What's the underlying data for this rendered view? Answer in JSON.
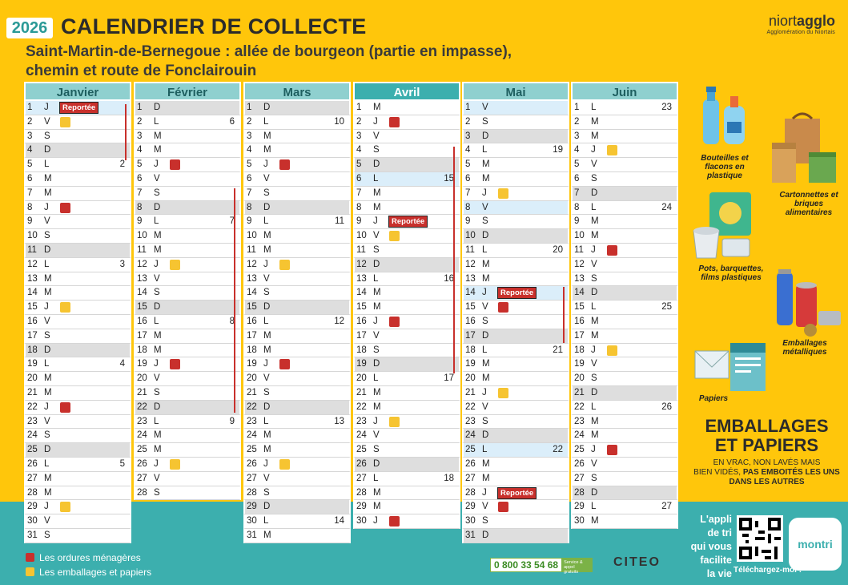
{
  "header": {
    "year": "2026",
    "title": "CALENDRIER DE COLLECTE",
    "subtitle_line1": "Saint-Martin-de-Bernegoue : allée de bourgeon (partie en impasse),",
    "subtitle_line2": "chemin et route de Fonclairouin"
  },
  "logo": {
    "brand_a": "niort",
    "brand_b": "agglo",
    "tagline": "Agglomération du Niortais"
  },
  "colors": {
    "red": "#c8302c",
    "yellow": "#f6c431",
    "teal": "#3cafae",
    "background": "#ffc60b"
  },
  "reported_label": "Reportée",
  "months": [
    {
      "name": "Janvier",
      "days": [
        {
          "n": "1",
          "l": "J",
          "hol": true,
          "rep": true
        },
        {
          "n": "2",
          "l": "V",
          "dot": "yel"
        },
        {
          "n": "3",
          "l": "S"
        },
        {
          "n": "4",
          "l": "D",
          "we": true
        },
        {
          "n": "5",
          "l": "L",
          "wk": "2"
        },
        {
          "n": "6",
          "l": "M"
        },
        {
          "n": "7",
          "l": "M"
        },
        {
          "n": "8",
          "l": "J",
          "dot": "red"
        },
        {
          "n": "9",
          "l": "V"
        },
        {
          "n": "10",
          "l": "S"
        },
        {
          "n": "11",
          "l": "D",
          "we": true
        },
        {
          "n": "12",
          "l": "L",
          "wk": "3"
        },
        {
          "n": "13",
          "l": "M"
        },
        {
          "n": "14",
          "l": "M"
        },
        {
          "n": "15",
          "l": "J",
          "dot": "yel"
        },
        {
          "n": "16",
          "l": "V"
        },
        {
          "n": "17",
          "l": "S"
        },
        {
          "n": "18",
          "l": "D",
          "we": true
        },
        {
          "n": "19",
          "l": "L",
          "wk": "4"
        },
        {
          "n": "20",
          "l": "M"
        },
        {
          "n": "21",
          "l": "M"
        },
        {
          "n": "22",
          "l": "J",
          "dot": "red"
        },
        {
          "n": "23",
          "l": "V"
        },
        {
          "n": "24",
          "l": "S"
        },
        {
          "n": "25",
          "l": "D",
          "we": true
        },
        {
          "n": "26",
          "l": "L",
          "wk": "5"
        },
        {
          "n": "27",
          "l": "M"
        },
        {
          "n": "28",
          "l": "M"
        },
        {
          "n": "29",
          "l": "J",
          "dot": "yel"
        },
        {
          "n": "30",
          "l": "V"
        },
        {
          "n": "31",
          "l": "S"
        }
      ]
    },
    {
      "name": "Février",
      "days": [
        {
          "n": "1",
          "l": "D",
          "we": true
        },
        {
          "n": "2",
          "l": "L",
          "wk": "6"
        },
        {
          "n": "3",
          "l": "M"
        },
        {
          "n": "4",
          "l": "M"
        },
        {
          "n": "5",
          "l": "J",
          "dot": "red"
        },
        {
          "n": "6",
          "l": "V"
        },
        {
          "n": "7",
          "l": "S"
        },
        {
          "n": "8",
          "l": "D",
          "we": true
        },
        {
          "n": "9",
          "l": "L",
          "wk": "7"
        },
        {
          "n": "10",
          "l": "M"
        },
        {
          "n": "11",
          "l": "M"
        },
        {
          "n": "12",
          "l": "J",
          "dot": "yel"
        },
        {
          "n": "13",
          "l": "V"
        },
        {
          "n": "14",
          "l": "S"
        },
        {
          "n": "15",
          "l": "D",
          "we": true
        },
        {
          "n": "16",
          "l": "L",
          "wk": "8"
        },
        {
          "n": "17",
          "l": "M"
        },
        {
          "n": "18",
          "l": "M"
        },
        {
          "n": "19",
          "l": "J",
          "dot": "red"
        },
        {
          "n": "20",
          "l": "V"
        },
        {
          "n": "21",
          "l": "S"
        },
        {
          "n": "22",
          "l": "D",
          "we": true
        },
        {
          "n": "23",
          "l": "L",
          "wk": "9"
        },
        {
          "n": "24",
          "l": "M"
        },
        {
          "n": "25",
          "l": "M"
        },
        {
          "n": "26",
          "l": "J",
          "dot": "yel"
        },
        {
          "n": "27",
          "l": "V"
        },
        {
          "n": "28",
          "l": "S"
        }
      ]
    },
    {
      "name": "Mars",
      "days": [
        {
          "n": "1",
          "l": "D",
          "we": true
        },
        {
          "n": "2",
          "l": "L",
          "wk": "10"
        },
        {
          "n": "3",
          "l": "M"
        },
        {
          "n": "4",
          "l": "M"
        },
        {
          "n": "5",
          "l": "J",
          "dot": "red"
        },
        {
          "n": "6",
          "l": "V"
        },
        {
          "n": "7",
          "l": "S"
        },
        {
          "n": "8",
          "l": "D",
          "we": true
        },
        {
          "n": "9",
          "l": "L",
          "wk": "11"
        },
        {
          "n": "10",
          "l": "M"
        },
        {
          "n": "11",
          "l": "M"
        },
        {
          "n": "12",
          "l": "J",
          "dot": "yel"
        },
        {
          "n": "13",
          "l": "V"
        },
        {
          "n": "14",
          "l": "S"
        },
        {
          "n": "15",
          "l": "D",
          "we": true
        },
        {
          "n": "16",
          "l": "L",
          "wk": "12"
        },
        {
          "n": "17",
          "l": "M"
        },
        {
          "n": "18",
          "l": "M"
        },
        {
          "n": "19",
          "l": "J",
          "dot": "red"
        },
        {
          "n": "20",
          "l": "V"
        },
        {
          "n": "21",
          "l": "S"
        },
        {
          "n": "22",
          "l": "D",
          "we": true
        },
        {
          "n": "23",
          "l": "L",
          "wk": "13"
        },
        {
          "n": "24",
          "l": "M"
        },
        {
          "n": "25",
          "l": "M"
        },
        {
          "n": "26",
          "l": "J",
          "dot": "yel"
        },
        {
          "n": "27",
          "l": "V"
        },
        {
          "n": "28",
          "l": "S"
        },
        {
          "n": "29",
          "l": "D",
          "we": true
        },
        {
          "n": "30",
          "l": "L",
          "wk": "14"
        },
        {
          "n": "31",
          "l": "M"
        }
      ]
    },
    {
      "name": "Avril",
      "sel": true,
      "days": [
        {
          "n": "1",
          "l": "M"
        },
        {
          "n": "2",
          "l": "J",
          "dot": "red"
        },
        {
          "n": "3",
          "l": "V"
        },
        {
          "n": "4",
          "l": "S"
        },
        {
          "n": "5",
          "l": "D",
          "we": true
        },
        {
          "n": "6",
          "l": "L",
          "wk": "15",
          "hol": true
        },
        {
          "n": "7",
          "l": "M"
        },
        {
          "n": "8",
          "l": "M"
        },
        {
          "n": "9",
          "l": "J",
          "rep": true
        },
        {
          "n": "10",
          "l": "V",
          "dot": "yel"
        },
        {
          "n": "11",
          "l": "S"
        },
        {
          "n": "12",
          "l": "D",
          "we": true
        },
        {
          "n": "13",
          "l": "L",
          "wk": "16"
        },
        {
          "n": "14",
          "l": "M"
        },
        {
          "n": "15",
          "l": "M"
        },
        {
          "n": "16",
          "l": "J",
          "dot": "red"
        },
        {
          "n": "17",
          "l": "V"
        },
        {
          "n": "18",
          "l": "S"
        },
        {
          "n": "19",
          "l": "D",
          "we": true
        },
        {
          "n": "20",
          "l": "L",
          "wk": "17"
        },
        {
          "n": "21",
          "l": "M"
        },
        {
          "n": "22",
          "l": "M"
        },
        {
          "n": "23",
          "l": "J",
          "dot": "yel"
        },
        {
          "n": "24",
          "l": "V"
        },
        {
          "n": "25",
          "l": "S"
        },
        {
          "n": "26",
          "l": "D",
          "we": true
        },
        {
          "n": "27",
          "l": "L",
          "wk": "18"
        },
        {
          "n": "28",
          "l": "M"
        },
        {
          "n": "29",
          "l": "M"
        },
        {
          "n": "30",
          "l": "J",
          "dot": "red"
        }
      ]
    },
    {
      "name": "Mai",
      "days": [
        {
          "n": "1",
          "l": "V",
          "hol": true
        },
        {
          "n": "2",
          "l": "S"
        },
        {
          "n": "3",
          "l": "D",
          "we": true
        },
        {
          "n": "4",
          "l": "L",
          "wk": "19"
        },
        {
          "n": "5",
          "l": "M"
        },
        {
          "n": "6",
          "l": "M"
        },
        {
          "n": "7",
          "l": "J",
          "dot": "yel"
        },
        {
          "n": "8",
          "l": "V",
          "hol": true
        },
        {
          "n": "9",
          "l": "S"
        },
        {
          "n": "10",
          "l": "D",
          "we": true
        },
        {
          "n": "11",
          "l": "L",
          "wk": "20"
        },
        {
          "n": "12",
          "l": "M"
        },
        {
          "n": "13",
          "l": "M"
        },
        {
          "n": "14",
          "l": "J",
          "hol": true,
          "rep": true
        },
        {
          "n": "15",
          "l": "V",
          "dot": "red"
        },
        {
          "n": "16",
          "l": "S"
        },
        {
          "n": "17",
          "l": "D",
          "we": true
        },
        {
          "n": "18",
          "l": "L",
          "wk": "21"
        },
        {
          "n": "19",
          "l": "M"
        },
        {
          "n": "20",
          "l": "M"
        },
        {
          "n": "21",
          "l": "J",
          "dot": "yel"
        },
        {
          "n": "22",
          "l": "V"
        },
        {
          "n": "23",
          "l": "S"
        },
        {
          "n": "24",
          "l": "D",
          "we": true
        },
        {
          "n": "25",
          "l": "L",
          "wk": "22",
          "hol": true
        },
        {
          "n": "26",
          "l": "M"
        },
        {
          "n": "27",
          "l": "M"
        },
        {
          "n": "28",
          "l": "J",
          "rep": true
        },
        {
          "n": "29",
          "l": "V",
          "dot": "red"
        },
        {
          "n": "30",
          "l": "S"
        },
        {
          "n": "31",
          "l": "D",
          "we": true
        }
      ]
    },
    {
      "name": "Juin",
      "days": [
        {
          "n": "1",
          "l": "L",
          "wk": "23"
        },
        {
          "n": "2",
          "l": "M"
        },
        {
          "n": "3",
          "l": "M"
        },
        {
          "n": "4",
          "l": "J",
          "dot": "yel"
        },
        {
          "n": "5",
          "l": "V"
        },
        {
          "n": "6",
          "l": "S"
        },
        {
          "n": "7",
          "l": "D",
          "we": true
        },
        {
          "n": "8",
          "l": "L",
          "wk": "24"
        },
        {
          "n": "9",
          "l": "M"
        },
        {
          "n": "10",
          "l": "M"
        },
        {
          "n": "11",
          "l": "J",
          "dot": "red"
        },
        {
          "n": "12",
          "l": "V"
        },
        {
          "n": "13",
          "l": "S"
        },
        {
          "n": "14",
          "l": "D",
          "we": true
        },
        {
          "n": "15",
          "l": "L",
          "wk": "25"
        },
        {
          "n": "16",
          "l": "M"
        },
        {
          "n": "17",
          "l": "M"
        },
        {
          "n": "18",
          "l": "J",
          "dot": "yel"
        },
        {
          "n": "19",
          "l": "V"
        },
        {
          "n": "20",
          "l": "S"
        },
        {
          "n": "21",
          "l": "D",
          "we": true
        },
        {
          "n": "22",
          "l": "L",
          "wk": "26"
        },
        {
          "n": "23",
          "l": "M"
        },
        {
          "n": "24",
          "l": "M"
        },
        {
          "n": "25",
          "l": "J",
          "dot": "red"
        },
        {
          "n": "26",
          "l": "V"
        },
        {
          "n": "27",
          "l": "S"
        },
        {
          "n": "28",
          "l": "D",
          "we": true
        },
        {
          "n": "29",
          "l": "L",
          "wk": "27"
        },
        {
          "n": "30",
          "l": "M"
        }
      ]
    }
  ],
  "categories": {
    "bottles": "Bouteilles et flacons en plastique",
    "cartons": "Cartonnettes et briques alimentaires",
    "pots": "Pots, barquettes, films plastiques",
    "metal": "Emballages métalliques",
    "paper": "Papiers"
  },
  "emballages": {
    "title_line1": "EMBALLAGES",
    "title_line2": "ET PAPIERS",
    "note_line1": "EN VRAC, NON LAVÉS MAIS",
    "note_line2a": "BIEN VIDÉS, ",
    "note_line2b": "PAS EMBOITÉS LES UNS",
    "note_line3": "DANS LES AUTRES"
  },
  "legend": {
    "red_label": "Les ordures ménagères",
    "yellow_label": "Les emballages et papiers"
  },
  "footer": {
    "phone": "0 800 33 54 68",
    "phone_tag": "Service & appel gratuits",
    "citeo": "CITEO",
    "app_line1": "L'appli",
    "app_line2": "de tri",
    "app_line3": "qui vous",
    "app_line4": "facilite",
    "app_line5": "la vie",
    "download": "Téléchargez-moi !",
    "montri": "montri"
  }
}
